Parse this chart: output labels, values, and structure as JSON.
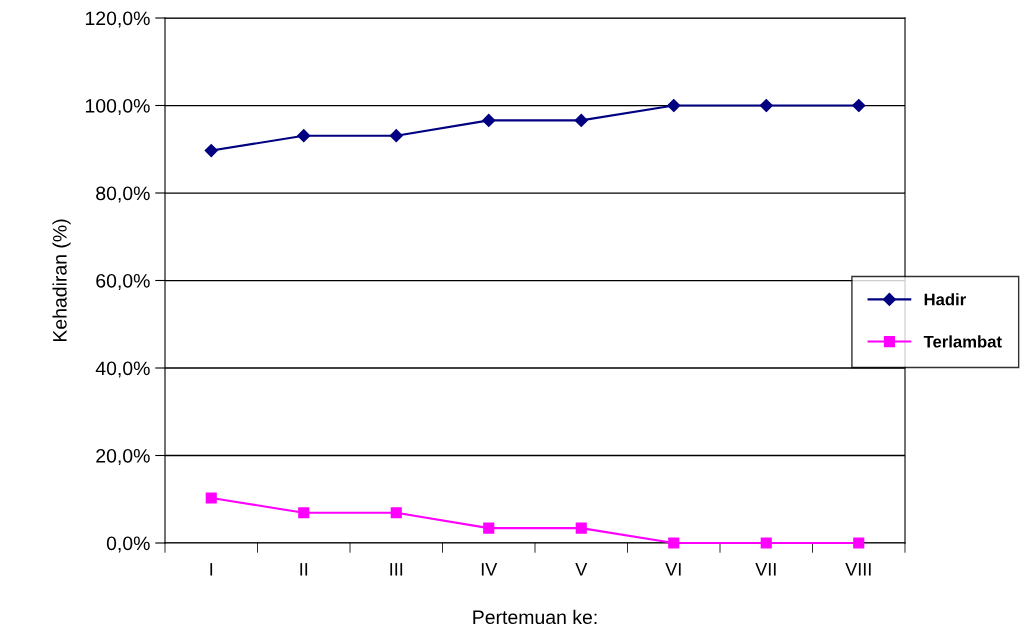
{
  "chart_data": {
    "type": "line",
    "xlabel": "Pertemuan ke:",
    "ylabel": "Kehadiran (%)",
    "categories": [
      "I",
      "II",
      "III",
      "IV",
      "V",
      "VI",
      "VII",
      "VIII"
    ],
    "series": [
      {
        "name": "Hadir",
        "color": "#000080",
        "marker": "diamond",
        "values": [
          89.7,
          93.1,
          93.1,
          96.6,
          96.6,
          100,
          100,
          100
        ]
      },
      {
        "name": "Terlambat",
        "color": "#ff00ff",
        "marker": "square",
        "values": [
          10.3,
          6.9,
          6.9,
          3.4,
          3.4,
          0,
          0,
          0
        ]
      }
    ],
    "ylim": [
      0,
      120
    ],
    "yticks": [
      {
        "value": 0,
        "label": "0,0%"
      },
      {
        "value": 20,
        "label": "20,0%"
      },
      {
        "value": 40,
        "label": "40,0%"
      },
      {
        "value": 60,
        "label": "60,0%"
      },
      {
        "value": 80,
        "label": "80,0%"
      },
      {
        "value": 100,
        "label": "100,0%"
      },
      {
        "value": 120,
        "label": "120,0%"
      }
    ],
    "grid": "y",
    "legend": "right",
    "line_style": "solid"
  }
}
